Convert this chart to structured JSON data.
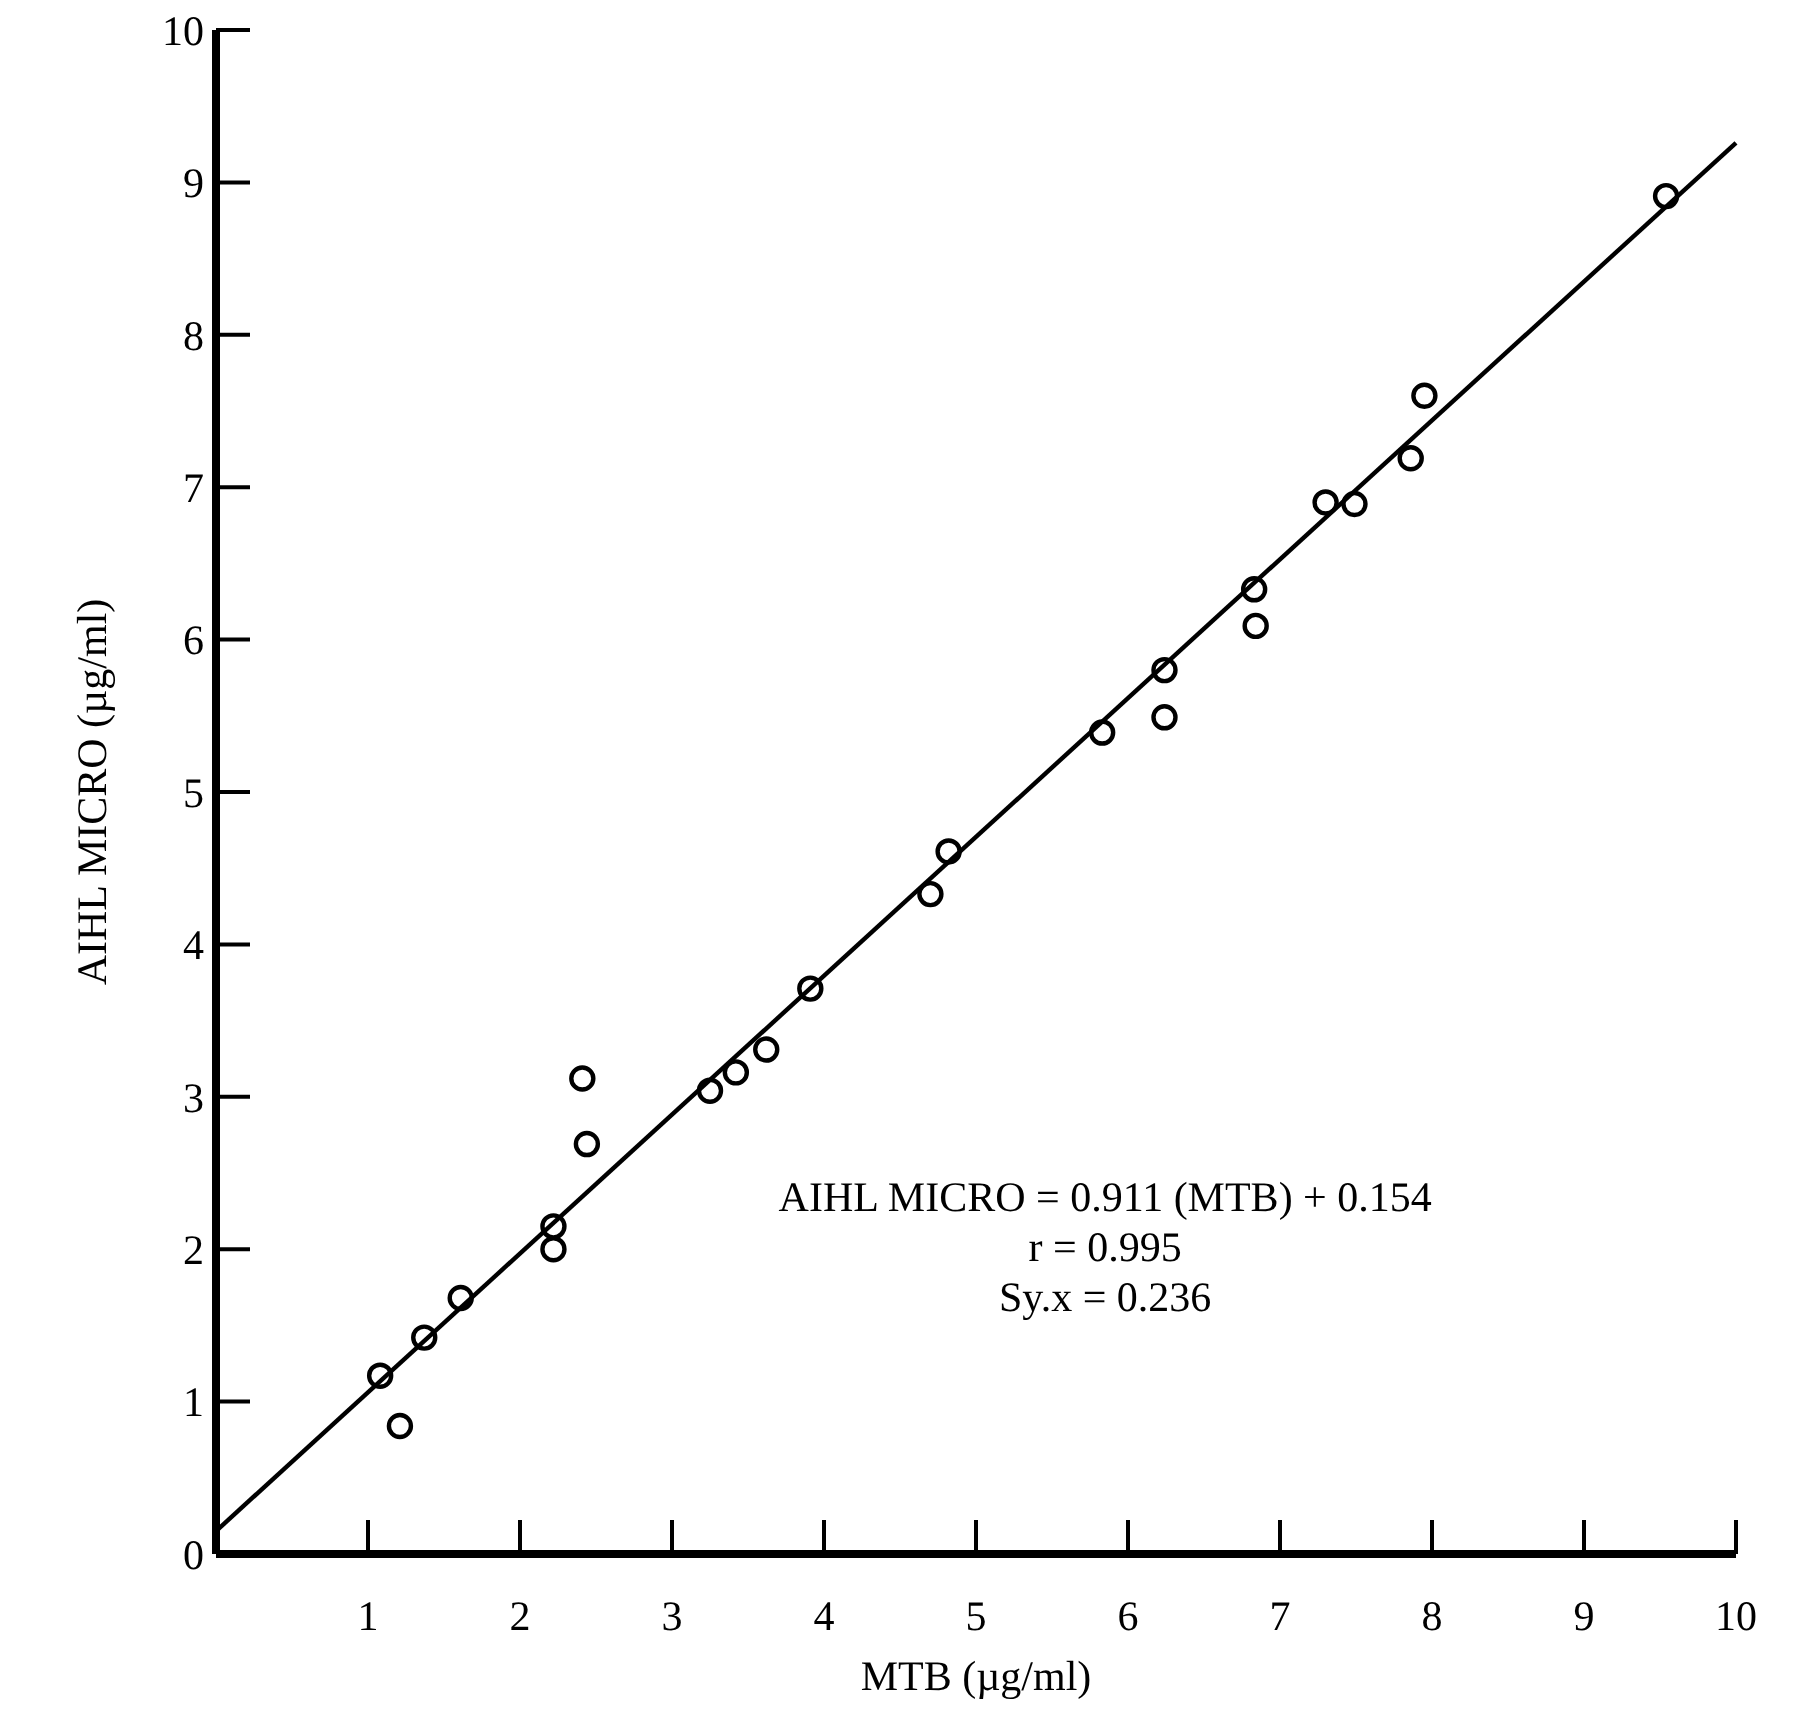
{
  "chart_data": {
    "type": "scatter",
    "xlabel": "MTB (µg/ml)",
    "ylabel": "AIHL MICRO (µg/ml)",
    "xlim": [
      0,
      10
    ],
    "ylim": [
      0,
      10
    ],
    "xticks": [
      {
        "value": 0,
        "label": null
      },
      1,
      2,
      3,
      4,
      5,
      6,
      7,
      8,
      9,
      10
    ],
    "yticks": [
      0,
      1,
      2,
      3,
      4,
      5,
      6,
      7,
      8,
      9,
      10
    ],
    "grid": false,
    "series": [
      {
        "color": "#000000",
        "marker": "circle",
        "x": [
          1.08,
          1.21,
          1.37,
          1.61,
          2.22,
          2.22,
          2.41,
          2.44,
          3.25,
          3.42,
          3.62,
          3.91,
          4.7,
          4.82,
          5.83,
          6.24,
          6.24,
          6.83,
          6.84,
          7.3,
          7.49,
          7.86,
          7.95,
          9.54
        ],
        "values": [
          1.17,
          0.84,
          1.42,
          1.68,
          2.15,
          2.0,
          3.12,
          2.69,
          3.04,
          3.16,
          3.31,
          3.71,
          4.33,
          4.61,
          5.39,
          5.8,
          5.49,
          6.33,
          6.09,
          6.9,
          6.89,
          7.19,
          7.6,
          8.91
        ]
      },
      {
        "type": "line",
        "color": "#000000",
        "line_style": "solid",
        "marker": "none",
        "x": [
          0,
          10
        ],
        "values": [
          0.15,
          9.26
        ]
      }
    ],
    "annotations": [
      "AIHL MICRO = 0.911 (MTB) + 0.154",
      "r = 0.995",
      "Sy.x = 0.236"
    ]
  }
}
